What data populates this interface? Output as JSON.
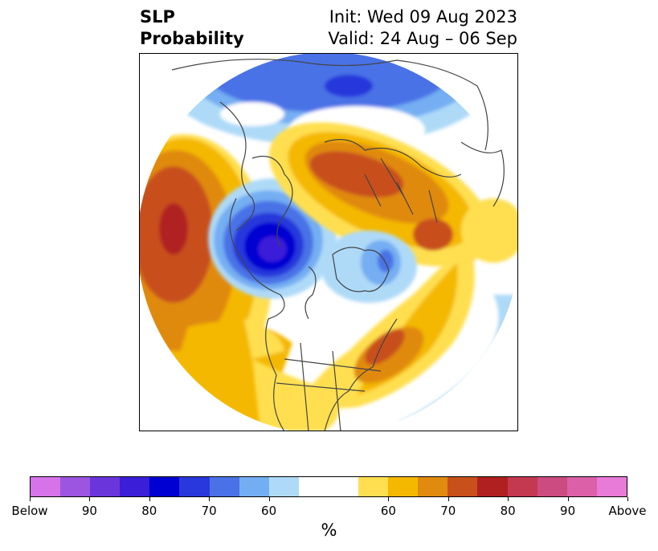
{
  "title": {
    "left_line1": "SLP",
    "left_line2": "Probability",
    "right_line1": "Init: Wed 09 Aug 2023",
    "right_line2": "Valid: 24 Aug – 06 Sep"
  },
  "map": {
    "projection": "north-polar-stereographic",
    "coastline_color": "#444444",
    "features": [
      {
        "name": "pacific-above-max",
        "category": "above",
        "level": "80"
      },
      {
        "name": "alaska-below-max",
        "category": "below",
        "level": "80"
      },
      {
        "name": "siberia-above",
        "category": "above",
        "level": "70"
      },
      {
        "name": "northeast-us-above",
        "category": "above",
        "level": "75"
      },
      {
        "name": "arctic-below",
        "category": "below",
        "level": "60"
      },
      {
        "name": "greenland-below",
        "category": "below",
        "level": "65"
      }
    ]
  },
  "colorbar": {
    "colors": [
      "#d673e8",
      "#9b55e0",
      "#6b35dc",
      "#3a1ed8",
      "#0000d2",
      "#2838dc",
      "#4a72e6",
      "#74aef2",
      "#aedaf8",
      "#ffffff",
      "#ffffff",
      "#ffdf50",
      "#f4b800",
      "#e08a10",
      "#c8501a",
      "#b02020",
      "#c43850",
      "#cc4c80",
      "#dc60a8",
      "#e87ad8"
    ],
    "tick_labels": [
      "Below",
      "90",
      "80",
      "70",
      "60",
      "60",
      "70",
      "80",
      "90",
      "Above"
    ],
    "unit_label": "%"
  }
}
